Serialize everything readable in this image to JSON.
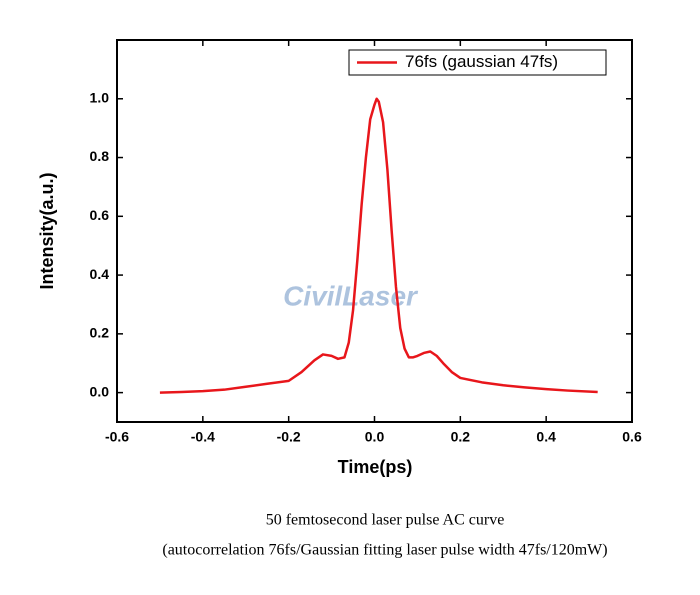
{
  "chart_data": {
    "type": "line",
    "x_label": "Time(ps)",
    "y_label": "Intensity(a.u.)",
    "watermark": "CivilLaser",
    "caption": [
      "50 femtosecond laser pulse AC curve",
      "(autocorrelation 76fs/Gaussian fitting laser pulse width 47fs/120mW)"
    ],
    "xlim": [
      -0.6,
      0.6
    ],
    "ylim": [
      -0.1,
      1.2
    ],
    "xticks": [
      -0.6,
      -0.4,
      -0.2,
      {
        "value": 0,
        "label": "0.0"
      },
      0.2,
      0.4,
      0.6
    ],
    "yticks": [
      {
        "value": 0,
        "label": "0.0"
      },
      0.2,
      0.4,
      0.6,
      0.8,
      {
        "value": 1,
        "label": "1.0"
      }
    ],
    "legend": "top-right",
    "x": [
      -0.5,
      -0.45,
      -0.4,
      -0.35,
      -0.3,
      -0.25,
      -0.2,
      -0.17,
      -0.14,
      -0.12,
      -0.1,
      -0.085,
      -0.07,
      -0.06,
      -0.05,
      -0.04,
      -0.03,
      -0.02,
      -0.01,
      0.0,
      0.005,
      0.01,
      0.02,
      0.03,
      0.04,
      0.05,
      0.06,
      0.07,
      0.08,
      0.09,
      0.1,
      0.115,
      0.13,
      0.145,
      0.16,
      0.18,
      0.2,
      0.25,
      0.3,
      0.35,
      0.4,
      0.45,
      0.52
    ],
    "series": [
      {
        "name": "76fs (gaussian 47fs)",
        "color": "#e8161b",
        "values": [
          0.0,
          0.002,
          0.005,
          0.01,
          0.02,
          0.03,
          0.04,
          0.07,
          0.11,
          0.13,
          0.125,
          0.115,
          0.12,
          0.17,
          0.28,
          0.45,
          0.64,
          0.8,
          0.93,
          0.98,
          1.0,
          0.99,
          0.92,
          0.76,
          0.55,
          0.36,
          0.22,
          0.15,
          0.12,
          0.12,
          0.125,
          0.135,
          0.14,
          0.125,
          0.1,
          0.07,
          0.05,
          0.035,
          0.025,
          0.018,
          0.012,
          0.007,
          0.002
        ]
      }
    ]
  }
}
